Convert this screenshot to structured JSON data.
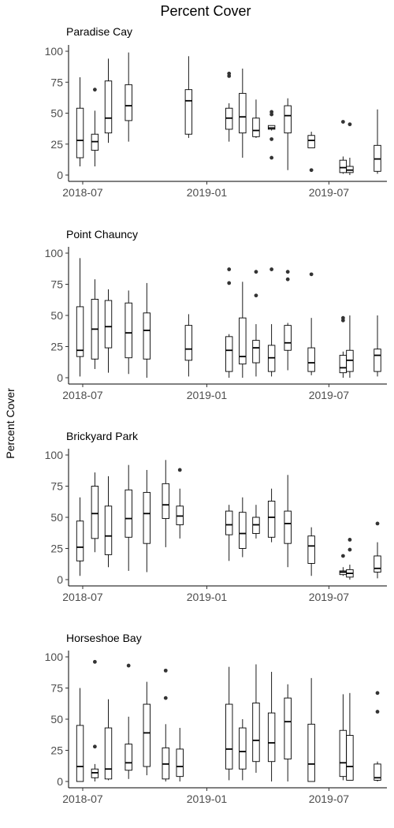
{
  "chart_data": {
    "type": "box",
    "title": "Percent Cover",
    "ylabel": "Percent Cover",
    "ylim": [
      0,
      100
    ],
    "yticks": [
      0,
      25,
      50,
      75,
      100
    ],
    "xticks": [
      {
        "label": "2018-07",
        "date": "2018-07-01"
      },
      {
        "label": "2019-01",
        "date": "2019-01-01"
      },
      {
        "label": "2019-07",
        "date": "2019-07-01"
      }
    ],
    "xrange": [
      "2018-06-10",
      "2019-09-25"
    ],
    "panels": [
      {
        "name": "Paradise Cay",
        "boxes": [
          {
            "date": "2018-06-27",
            "min": 7,
            "q1": 14,
            "median": 28,
            "q3": 54,
            "max": 79,
            "outliers": []
          },
          {
            "date": "2018-07-19",
            "min": 7,
            "q1": 20,
            "median": 27,
            "q3": 33,
            "max": 52,
            "outliers": [
              69
            ]
          },
          {
            "date": "2018-08-08",
            "min": 26,
            "q1": 34,
            "median": 46,
            "q3": 76,
            "max": 94,
            "outliers": []
          },
          {
            "date": "2018-09-07",
            "min": 27,
            "q1": 44,
            "median": 56,
            "q3": 73,
            "max": 99,
            "outliers": []
          },
          {
            "date": "2018-12-05",
            "min": 30,
            "q1": 33,
            "median": 60,
            "q3": 69,
            "max": 96,
            "outliers": []
          },
          {
            "date": "2019-02-03",
            "min": 27,
            "q1": 37,
            "median": 46,
            "q3": 54,
            "max": 58,
            "outliers": [
              80,
              82
            ]
          },
          {
            "date": "2019-02-23",
            "min": 14,
            "q1": 34,
            "median": 47,
            "q3": 66,
            "max": 86,
            "outliers": []
          },
          {
            "date": "2019-03-15",
            "min": 30,
            "q1": 31,
            "median": 36,
            "q3": 46,
            "max": 61,
            "outliers": []
          },
          {
            "date": "2019-04-07",
            "min": 36,
            "q1": 37,
            "median": 38,
            "q3": 40,
            "max": 40,
            "outliers": [
              49,
              51,
              29,
              14
            ]
          },
          {
            "date": "2019-05-01",
            "min": 4,
            "q1": 34,
            "median": 48,
            "q3": 56,
            "max": 62,
            "outliers": []
          },
          {
            "date": "2019-06-05",
            "min": 22,
            "q1": 22,
            "median": 28,
            "q3": 32,
            "max": 35,
            "outliers": [
              4
            ]
          },
          {
            "date": "2019-07-22",
            "min": 1,
            "q1": 2,
            "median": 6,
            "q3": 12,
            "max": 15,
            "outliers": [
              43
            ]
          },
          {
            "date": "2019-08-01",
            "min": 0,
            "q1": 2,
            "median": 4,
            "q3": 7,
            "max": 14,
            "outliers": [
              41
            ]
          },
          {
            "date": "2019-09-11",
            "min": 1,
            "q1": 3,
            "median": 13,
            "q3": 24,
            "max": 53,
            "outliers": []
          }
        ]
      },
      {
        "name": "Point Chauncy",
        "boxes": [
          {
            "date": "2018-06-27",
            "min": 1,
            "q1": 17,
            "median": 22,
            "q3": 57,
            "max": 96,
            "outliers": []
          },
          {
            "date": "2018-07-19",
            "min": 7,
            "q1": 15,
            "median": 39,
            "q3": 63,
            "max": 79,
            "outliers": []
          },
          {
            "date": "2018-08-08",
            "min": 4,
            "q1": 24,
            "median": 41,
            "q3": 62,
            "max": 71,
            "outliers": []
          },
          {
            "date": "2018-09-07",
            "min": 3,
            "q1": 16,
            "median": 36,
            "q3": 60,
            "max": 70,
            "outliers": []
          },
          {
            "date": "2018-10-04",
            "min": 0,
            "q1": 15,
            "median": 38,
            "q3": 52,
            "max": 76,
            "outliers": []
          },
          {
            "date": "2018-12-05",
            "min": 1,
            "q1": 14,
            "median": 23,
            "q3": 42,
            "max": 51,
            "outliers": []
          },
          {
            "date": "2019-02-03",
            "min": 0,
            "q1": 5,
            "median": 22,
            "q3": 33,
            "max": 35,
            "outliers": [
              87,
              76
            ]
          },
          {
            "date": "2019-02-23",
            "min": 0,
            "q1": 11,
            "median": 17,
            "q3": 48,
            "max": 77,
            "outliers": []
          },
          {
            "date": "2019-03-15",
            "min": 1,
            "q1": 12,
            "median": 24,
            "q3": 30,
            "max": 43,
            "outliers": [
              85,
              66
            ]
          },
          {
            "date": "2019-04-07",
            "min": 1,
            "q1": 5,
            "median": 16,
            "q3": 26,
            "max": 43,
            "outliers": [
              87
            ]
          },
          {
            "date": "2019-05-01",
            "min": 6,
            "q1": 22,
            "median": 28,
            "q3": 42,
            "max": 44,
            "outliers": [
              85,
              79
            ]
          },
          {
            "date": "2019-06-05",
            "min": 2,
            "q1": 5,
            "median": 12,
            "q3": 24,
            "max": 48,
            "outliers": [
              83
            ]
          },
          {
            "date": "2019-07-22",
            "min": 0,
            "q1": 4,
            "median": 8,
            "q3": 18,
            "max": 21,
            "outliers": [
              46,
              48
            ]
          },
          {
            "date": "2019-08-01",
            "min": 0,
            "q1": 5,
            "median": 14,
            "q3": 22,
            "max": 50,
            "outliers": []
          },
          {
            "date": "2019-09-11",
            "min": 1,
            "q1": 5,
            "median": 18,
            "q3": 23,
            "max": 50,
            "outliers": []
          }
        ]
      },
      {
        "name": "Brickyard Park",
        "boxes": [
          {
            "date": "2018-06-27",
            "min": 3,
            "q1": 15,
            "median": 26,
            "q3": 47,
            "max": 66,
            "outliers": []
          },
          {
            "date": "2018-07-19",
            "min": 22,
            "q1": 33,
            "median": 53,
            "q3": 75,
            "max": 86,
            "outliers": []
          },
          {
            "date": "2018-08-08",
            "min": 10,
            "q1": 20,
            "median": 35,
            "q3": 59,
            "max": 83,
            "outliers": []
          },
          {
            "date": "2018-09-07",
            "min": 7,
            "q1": 34,
            "median": 49,
            "q3": 72,
            "max": 92,
            "outliers": []
          },
          {
            "date": "2018-10-04",
            "min": 6,
            "q1": 29,
            "median": 53,
            "q3": 70,
            "max": 88,
            "outliers": []
          },
          {
            "date": "2018-11-01",
            "min": 26,
            "q1": 49,
            "median": 60,
            "q3": 77,
            "max": 96,
            "outliers": []
          },
          {
            "date": "2018-11-22",
            "min": 33,
            "q1": 44,
            "median": 51,
            "q3": 59,
            "max": 73,
            "outliers": [
              88
            ]
          },
          {
            "date": "2019-02-03",
            "min": 15,
            "q1": 36,
            "median": 44,
            "q3": 55,
            "max": 60,
            "outliers": []
          },
          {
            "date": "2019-02-23",
            "min": 18,
            "q1": 25,
            "median": 37,
            "q3": 54,
            "max": 66,
            "outliers": []
          },
          {
            "date": "2019-03-15",
            "min": 33,
            "q1": 37,
            "median": 44,
            "q3": 50,
            "max": 60,
            "outliers": []
          },
          {
            "date": "2019-04-07",
            "min": 30,
            "q1": 34,
            "median": 50,
            "q3": 63,
            "max": 73,
            "outliers": []
          },
          {
            "date": "2019-05-01",
            "min": 10,
            "q1": 29,
            "median": 45,
            "q3": 55,
            "max": 84,
            "outliers": []
          },
          {
            "date": "2019-06-05",
            "min": 3,
            "q1": 13,
            "median": 27,
            "q3": 35,
            "max": 42,
            "outliers": []
          },
          {
            "date": "2019-07-22",
            "min": 3,
            "q1": 4,
            "median": 6,
            "q3": 7,
            "max": 10,
            "outliers": [
              19
            ]
          },
          {
            "date": "2019-08-01",
            "min": 0,
            "q1": 2,
            "median": 5,
            "q3": 8,
            "max": 12,
            "outliers": [
              32,
              24
            ]
          },
          {
            "date": "2019-09-11",
            "min": 1,
            "q1": 6,
            "median": 9,
            "q3": 19,
            "max": 30,
            "outliers": [
              45
            ]
          }
        ]
      },
      {
        "name": "Horseshoe Bay",
        "boxes": [
          {
            "date": "2018-06-27",
            "min": 0,
            "q1": 0,
            "median": 12,
            "q3": 45,
            "max": 75,
            "outliers": []
          },
          {
            "date": "2018-07-19",
            "min": 0,
            "q1": 3,
            "median": 7,
            "q3": 10,
            "max": 14,
            "outliers": [
              96,
              28
            ]
          },
          {
            "date": "2018-08-08",
            "min": 1,
            "q1": 2,
            "median": 10,
            "q3": 43,
            "max": 66,
            "outliers": []
          },
          {
            "date": "2018-09-07",
            "min": 2,
            "q1": 9,
            "median": 15,
            "q3": 30,
            "max": 52,
            "outliers": [
              93
            ]
          },
          {
            "date": "2018-10-04",
            "min": 5,
            "q1": 12,
            "median": 39,
            "q3": 62,
            "max": 80,
            "outliers": []
          },
          {
            "date": "2018-11-01",
            "min": 0,
            "q1": 2,
            "median": 14,
            "q3": 27,
            "max": 46,
            "outliers": [
              89,
              67
            ]
          },
          {
            "date": "2018-11-22",
            "min": 0,
            "q1": 4,
            "median": 12,
            "q3": 26,
            "max": 43,
            "outliers": []
          },
          {
            "date": "2019-02-03",
            "min": 1,
            "q1": 10,
            "median": 26,
            "q3": 62,
            "max": 92,
            "outliers": []
          },
          {
            "date": "2019-02-23",
            "min": 1,
            "q1": 10,
            "median": 24,
            "q3": 43,
            "max": 50,
            "outliers": []
          },
          {
            "date": "2019-03-15",
            "min": 7,
            "q1": 16,
            "median": 33,
            "q3": 63,
            "max": 94,
            "outliers": []
          },
          {
            "date": "2019-04-07",
            "min": 0,
            "q1": 16,
            "median": 31,
            "q3": 55,
            "max": 88,
            "outliers": []
          },
          {
            "date": "2019-05-01",
            "min": 0,
            "q1": 18,
            "median": 48,
            "q3": 67,
            "max": 78,
            "outliers": []
          },
          {
            "date": "2019-06-05",
            "min": 0,
            "q1": 0,
            "median": 14,
            "q3": 46,
            "max": 83,
            "outliers": []
          },
          {
            "date": "2019-07-22",
            "min": 1,
            "q1": 4,
            "median": 15,
            "q3": 41,
            "max": 70,
            "outliers": []
          },
          {
            "date": "2019-08-01",
            "min": 1,
            "q1": 1,
            "median": 12,
            "q3": 37,
            "max": 71,
            "outliers": []
          },
          {
            "date": "2019-09-11",
            "min": 0,
            "q1": 1,
            "median": 3,
            "q3": 14,
            "max": 16,
            "outliers": [
              71,
              56
            ]
          }
        ]
      }
    ]
  }
}
